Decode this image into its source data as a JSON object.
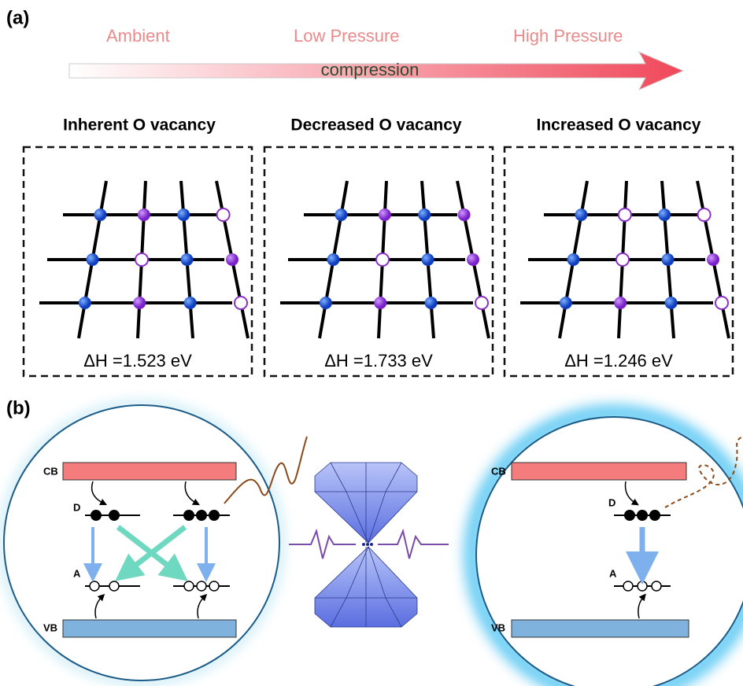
{
  "panel_a": {
    "label": "(a)",
    "stages": [
      "Ambient",
      "Low Pressure",
      "High Pressure"
    ],
    "arrow_label": "compression",
    "panels": [
      {
        "title": "Inherent O vacancy",
        "energy": "ΔH =1.523 eV"
      },
      {
        "title": "Decreased O vacancy",
        "energy": "ΔH =1.733 eV"
      },
      {
        "title": "Increased O vacancy",
        "energy": "ΔH =1.246 eV"
      }
    ]
  },
  "panel_b": {
    "label": "(b)",
    "left": {
      "cb": "CB",
      "vb": "VB",
      "donor": "D",
      "acceptor": "A"
    },
    "right": {
      "cb": "CB",
      "vb": "VB",
      "donor": "D",
      "acceptor": "A"
    }
  }
}
